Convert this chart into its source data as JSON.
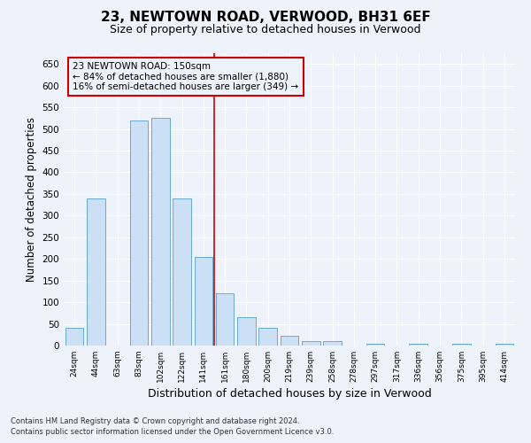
{
  "title": "23, NEWTOWN ROAD, VERWOOD, BH31 6EF",
  "subtitle": "Size of property relative to detached houses in Verwood",
  "xlabel": "Distribution of detached houses by size in Verwood",
  "ylabel": "Number of detached properties",
  "categories": [
    "24sqm",
    "44sqm",
    "63sqm",
    "83sqm",
    "102sqm",
    "122sqm",
    "141sqm",
    "161sqm",
    "180sqm",
    "200sqm",
    "219sqm",
    "239sqm",
    "258sqm",
    "278sqm",
    "297sqm",
    "317sqm",
    "336sqm",
    "356sqm",
    "375sqm",
    "395sqm",
    "414sqm"
  ],
  "values": [
    40,
    340,
    0,
    520,
    525,
    340,
    205,
    120,
    65,
    40,
    22,
    10,
    10,
    0,
    5,
    0,
    5,
    0,
    5,
    0,
    5
  ],
  "bar_color": "#cce0f5",
  "bar_edge_color": "#6aaad4",
  "vline_color": "#cc0000",
  "vline_x": 6.5,
  "annotation_text": "23 NEWTOWN ROAD: 150sqm\n← 84% of detached houses are smaller (1,880)\n16% of semi-detached houses are larger (349) →",
  "annotation_box_color": "#cc0000",
  "ylim": [
    0,
    675
  ],
  "yticks": [
    0,
    50,
    100,
    150,
    200,
    250,
    300,
    350,
    400,
    450,
    500,
    550,
    600,
    650
  ],
  "footer_line1": "Contains HM Land Registry data © Crown copyright and database right 2024.",
  "footer_line2": "Contains public sector information licensed under the Open Government Licence v3.0.",
  "background_color": "#eef2fb",
  "grid_color": "#ffffff",
  "title_fontsize": 11,
  "subtitle_fontsize": 9,
  "xlabel_fontsize": 9,
  "ylabel_fontsize": 8.5
}
